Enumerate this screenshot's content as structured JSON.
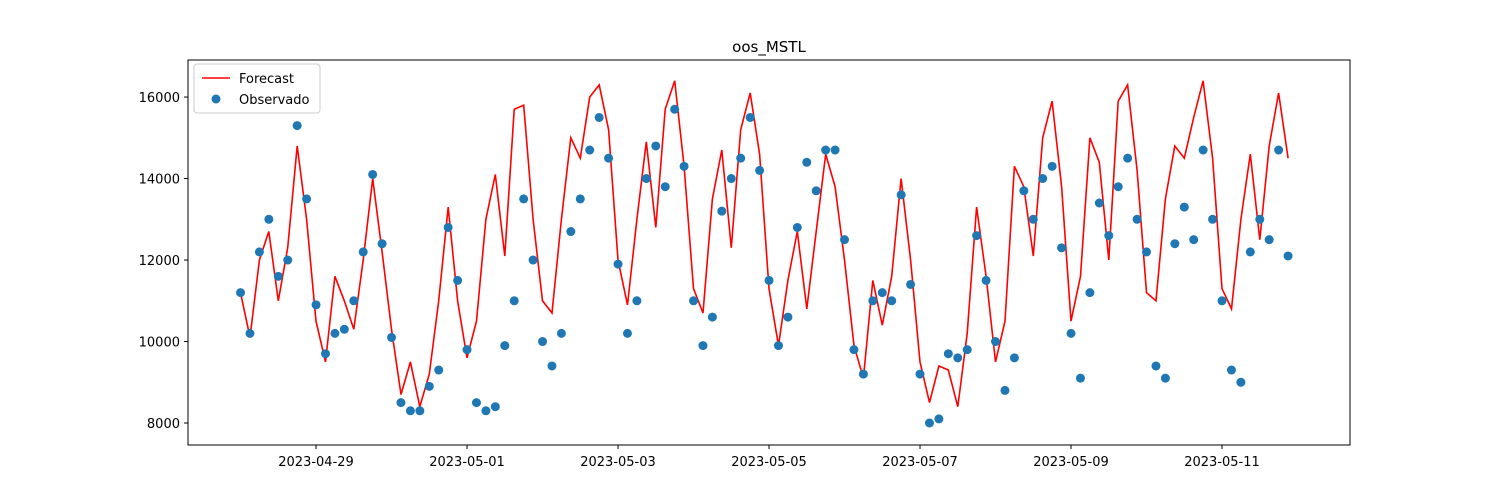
{
  "chart_data": {
    "type": "line",
    "title": "oos_MSTL",
    "x": [
      "2023-04-28T00:00",
      "2023-04-28T03:00",
      "2023-04-28T06:00",
      "2023-04-28T09:00",
      "2023-04-28T12:00",
      "2023-04-28T15:00",
      "2023-04-28T18:00",
      "2023-04-28T21:00",
      "2023-04-29T00:00",
      "2023-04-29T03:00",
      "2023-04-29T06:00",
      "2023-04-29T09:00",
      "2023-04-29T12:00",
      "2023-04-29T15:00",
      "2023-04-29T18:00",
      "2023-04-29T21:00",
      "2023-04-30T00:00",
      "2023-04-30T03:00",
      "2023-04-30T06:00",
      "2023-04-30T09:00",
      "2023-04-30T12:00",
      "2023-04-30T15:00",
      "2023-04-30T18:00",
      "2023-04-30T21:00",
      "2023-05-01T00:00",
      "2023-05-01T03:00",
      "2023-05-01T06:00",
      "2023-05-01T09:00",
      "2023-05-01T12:00",
      "2023-05-01T15:00",
      "2023-05-01T18:00",
      "2023-05-01T21:00",
      "2023-05-02T00:00",
      "2023-05-02T03:00",
      "2023-05-02T06:00",
      "2023-05-02T09:00",
      "2023-05-02T12:00",
      "2023-05-02T15:00",
      "2023-05-02T18:00",
      "2023-05-02T21:00",
      "2023-05-03T00:00",
      "2023-05-03T03:00",
      "2023-05-03T06:00",
      "2023-05-03T09:00",
      "2023-05-03T12:00",
      "2023-05-03T15:00",
      "2023-05-03T18:00",
      "2023-05-03T21:00",
      "2023-05-04T00:00",
      "2023-05-04T03:00",
      "2023-05-04T06:00",
      "2023-05-04T09:00",
      "2023-05-04T12:00",
      "2023-05-04T15:00",
      "2023-05-04T18:00",
      "2023-05-04T21:00",
      "2023-05-05T00:00",
      "2023-05-05T03:00",
      "2023-05-05T06:00",
      "2023-05-05T09:00",
      "2023-05-05T12:00",
      "2023-05-05T15:00",
      "2023-05-05T18:00",
      "2023-05-05T21:00",
      "2023-05-06T00:00",
      "2023-05-06T03:00",
      "2023-05-06T06:00",
      "2023-05-06T09:00",
      "2023-05-06T12:00",
      "2023-05-06T15:00",
      "2023-05-06T18:00",
      "2023-05-06T21:00",
      "2023-05-07T00:00",
      "2023-05-07T03:00",
      "2023-05-07T06:00",
      "2023-05-07T09:00",
      "2023-05-07T12:00",
      "2023-05-07T15:00",
      "2023-05-07T18:00",
      "2023-05-07T21:00",
      "2023-05-08T00:00",
      "2023-05-08T03:00",
      "2023-05-08T06:00",
      "2023-05-08T09:00",
      "2023-05-08T12:00",
      "2023-05-08T15:00",
      "2023-05-08T18:00",
      "2023-05-08T21:00",
      "2023-05-09T00:00",
      "2023-05-09T03:00",
      "2023-05-09T06:00",
      "2023-05-09T09:00",
      "2023-05-09T12:00",
      "2023-05-09T15:00",
      "2023-05-09T18:00",
      "2023-05-09T21:00",
      "2023-05-10T00:00",
      "2023-05-10T03:00",
      "2023-05-10T06:00",
      "2023-05-10T09:00",
      "2023-05-10T12:00",
      "2023-05-10T15:00",
      "2023-05-10T18:00",
      "2023-05-10T21:00",
      "2023-05-11T00:00",
      "2023-05-11T03:00",
      "2023-05-11T06:00",
      "2023-05-11T09:00",
      "2023-05-11T12:00",
      "2023-05-11T15:00",
      "2023-05-11T18:00",
      "2023-05-11T21:00"
    ],
    "series": [
      {
        "name": "Forecast",
        "kind": "line",
        "color": "#ff0000",
        "values": [
          11200,
          10100,
          12000,
          12700,
          11000,
          12300,
          14800,
          13000,
          10500,
          9500,
          11600,
          11000,
          10300,
          12000,
          14000,
          12200,
          10300,
          8700,
          9500,
          8400,
          9200,
          11000,
          13300,
          11000,
          9600,
          10500,
          13000,
          14100,
          12100,
          15700,
          15800,
          13000,
          11000,
          10700,
          13000,
          15000,
          14500,
          16000,
          16300,
          15200,
          12000,
          10900,
          13000,
          14900,
          12800,
          15700,
          16400,
          14300,
          11300,
          10700,
          13500,
          14700,
          12300,
          15200,
          16100,
          14600,
          11300,
          9900,
          11500,
          12700,
          10800,
          12700,
          14600,
          13800,
          12000,
          9900,
          9100,
          11500,
          10400,
          11600,
          14000,
          12000,
          9500,
          8500,
          9400,
          9300,
          8400,
          10200,
          13300,
          11600,
          9500,
          10500,
          14300,
          13800,
          12100,
          15000,
          15900,
          13800,
          10500,
          11600,
          15000,
          14400,
          12000,
          15900,
          16300,
          14200,
          11200,
          11000,
          13500,
          14800,
          14500,
          15500,
          16400,
          14500,
          11300,
          10800,
          13000,
          14600,
          12500,
          14800,
          16100,
          14500
        ]
      },
      {
        "name": "Observado",
        "kind": "scatter",
        "color": "#1f77b4",
        "values": [
          11200,
          10200,
          12200,
          13000,
          11600,
          12000,
          15300,
          13500,
          10900,
          9700,
          10200,
          10300,
          11000,
          12200,
          14100,
          12400,
          10100,
          8500,
          8300,
          8300,
          8900,
          9300,
          12800,
          11500,
          9800,
          8500,
          8300,
          8400,
          9900,
          11000,
          13500,
          12000,
          10000,
          9400,
          10200,
          12700,
          13500,
          14700,
          15500,
          14500,
          11900,
          10200,
          11000,
          14000,
          14800,
          13800,
          15700,
          14300,
          11000,
          9900,
          10600,
          13200,
          14000,
          14500,
          15500,
          14200,
          11500,
          9900,
          10600,
          12800,
          14400,
          13700,
          14700,
          14700,
          12500,
          9800,
          9200,
          11000,
          11200,
          11000,
          13600,
          11400,
          9200,
          8000,
          8100,
          9700,
          9600,
          9800,
          12600,
          11500,
          10000,
          8800,
          9600,
          13700,
          13000,
          14000,
          14300,
          12300,
          10200,
          9100,
          11200,
          13400,
          12600,
          13800,
          14500,
          13000,
          12200,
          9400,
          9100,
          12400,
          13300,
          12500,
          14700,
          13000,
          11000,
          9300,
          9000,
          12200,
          13000,
          12500,
          14700,
          12100
        ]
      }
    ],
    "xlim": [
      "2023-04-27T07:18",
      "2023-05-12T16:41"
    ],
    "xticks": [
      "2023-04-29",
      "2023-05-01",
      "2023-05-03",
      "2023-05-05",
      "2023-05-07",
      "2023-05-09",
      "2023-05-11"
    ],
    "ylim": [
      7460,
      16910
    ],
    "yticks": [
      8000,
      10000,
      12000,
      14000,
      16000
    ],
    "legend": "upper left"
  }
}
